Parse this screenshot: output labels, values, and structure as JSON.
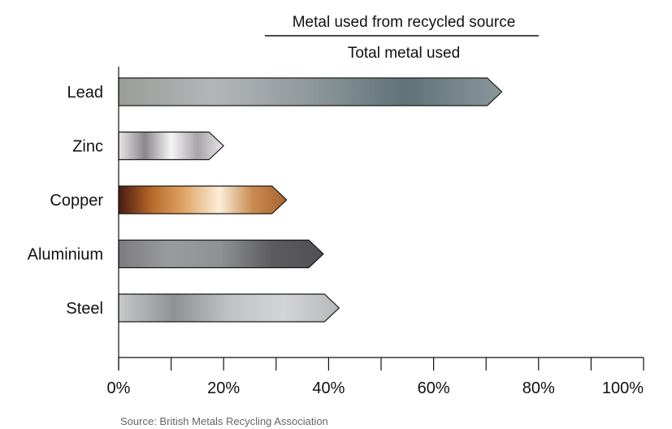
{
  "chart_data": {
    "type": "bar",
    "orientation": "horizontal",
    "title_numerator": "Metal used from recycled source",
    "title_denominator": "Total metal used",
    "source": "Source: British Metals Recycling Association",
    "categories": [
      "Lead",
      "Zinc",
      "Copper",
      "Aluminium",
      "Steel"
    ],
    "values": [
      73,
      20,
      32,
      39,
      42
    ],
    "xlim": [
      0,
      100
    ],
    "x_ticks": [
      0,
      20,
      40,
      60,
      80,
      100
    ],
    "x_tick_labels": [
      "0%",
      "20%",
      "40%",
      "60%",
      "80%",
      "100%"
    ],
    "x_minor_ticks": [
      10,
      30,
      50,
      70,
      90
    ],
    "grid": false,
    "bar_shape": "arrow",
    "bar_gradients": {
      "Lead": [
        "#9a9d98",
        "#b3b6b8",
        "#8f989c",
        "#5f7378",
        "#8a969a"
      ],
      "Zinc": [
        "#e9e4e4",
        "#8c878c",
        "#f4f4f4",
        "#a9a4aa",
        "#e8e5e8"
      ],
      "Copper": [
        "#4a1a10",
        "#b86a2a",
        "#e2a86a",
        "#fbefd8",
        "#c98a50",
        "#a8642e"
      ],
      "Aluminium": [
        "#7c7c80",
        "#9a9b9f",
        "#8f9094",
        "#5b5b60",
        "#505055"
      ],
      "Steel": [
        "#c7c8ca",
        "#8f9295",
        "#c0c2c4",
        "#d3d4d6",
        "#b6b8ba"
      ]
    }
  }
}
